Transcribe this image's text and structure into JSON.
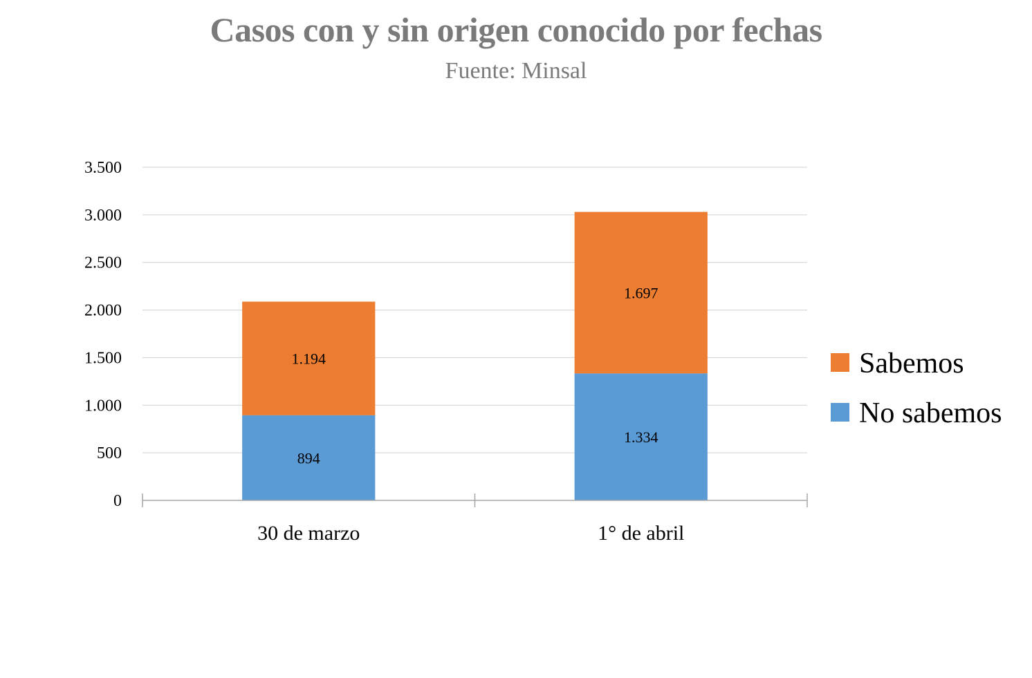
{
  "chart_data": {
    "type": "bar",
    "stacked": true,
    "title": "Casos con y sin origen conocido por fechas",
    "subtitle": "Fuente: Minsal",
    "categories": [
      "30 de marzo",
      "1° de abril"
    ],
    "series": [
      {
        "name": "No sabemos",
        "values": [
          894,
          1334
        ],
        "labels": [
          "894",
          "1.334"
        ],
        "color": "#5b9bd5"
      },
      {
        "name": "Sabemos",
        "values": [
          1194,
          1697
        ],
        "labels": [
          "1.194",
          "1.697"
        ],
        "color": "#ed7d31"
      }
    ],
    "ylim": [
      0,
      3500
    ],
    "yticks": [
      0,
      500,
      1000,
      1500,
      2000,
      2500,
      3000,
      3500
    ],
    "ytick_labels": [
      "0",
      "500",
      "1.000",
      "1.500",
      "2.000",
      "2.500",
      "3.000",
      "3.500"
    ],
    "grid": true,
    "legend": "right",
    "legend_order": [
      "Sabemos",
      "No sabemos"
    ],
    "xlabel": "",
    "ylabel": ""
  }
}
